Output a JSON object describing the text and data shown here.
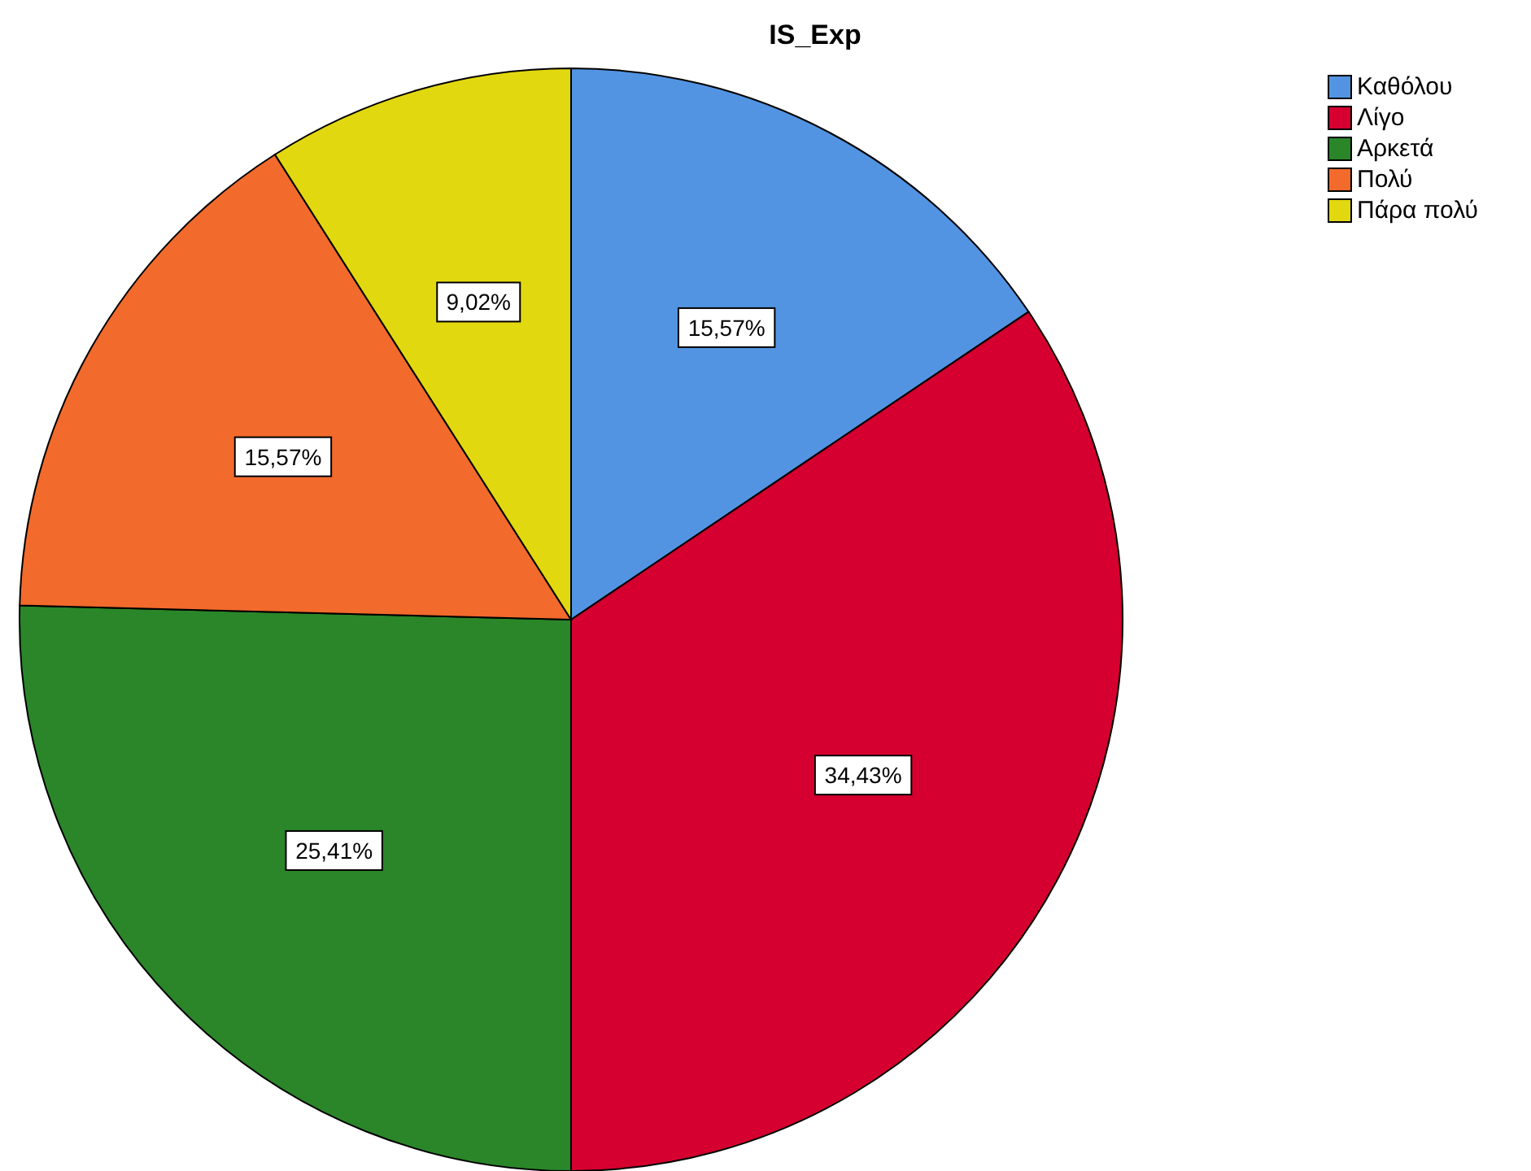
{
  "chart_data": {
    "type": "pie",
    "title": "IS_Exp",
    "categories": [
      "Καθόλου",
      "Λίγο",
      "Αρκετά",
      "Πολύ",
      "Πάρα πολύ"
    ],
    "values": [
      15.57,
      34.43,
      25.41,
      15.57,
      9.02
    ],
    "colors": [
      "#5294e2",
      "#d5002f",
      "#2a8629",
      "#f26a2c",
      "#e2d80f"
    ],
    "value_labels": [
      "15,57%",
      "34,43%",
      "25,41%",
      "15,57%",
      "9,02%"
    ],
    "legend": "top right"
  }
}
